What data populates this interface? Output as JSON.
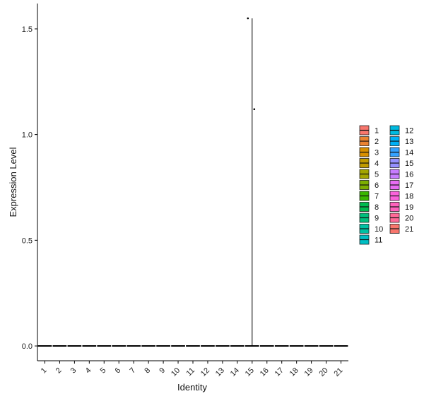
{
  "chart_data": {
    "type": "violin",
    "title": "",
    "xlabel": "Identity",
    "ylabel": "Expression Level",
    "ylim": [
      -0.07,
      1.62
    ],
    "yticks": [
      0.0,
      0.5,
      1.0,
      1.5
    ],
    "ytick_labels": [
      "0.0",
      "0.5",
      "1.0",
      "1.5"
    ],
    "categories": [
      "1",
      "2",
      "3",
      "4",
      "5",
      "6",
      "7",
      "8",
      "9",
      "10",
      "11",
      "12",
      "13",
      "14",
      "15",
      "16",
      "17",
      "18",
      "19",
      "20",
      "21"
    ],
    "median_values": [
      0,
      0,
      0,
      0,
      0,
      0,
      0,
      0,
      0,
      0,
      0,
      0,
      0,
      0,
      0,
      0,
      0,
      0,
      0,
      0,
      0
    ],
    "points": [
      {
        "category": "15",
        "value": 1.55
      },
      {
        "category": "15",
        "value": 1.12
      }
    ],
    "vertical_extents": [
      {
        "category": "15",
        "min": 0.0,
        "max": 1.55
      }
    ],
    "legend": {
      "position": "right",
      "columns": 2,
      "entries": [
        "1",
        "2",
        "3",
        "4",
        "5",
        "6",
        "7",
        "8",
        "9",
        "10",
        "11",
        "12",
        "13",
        "14",
        "15",
        "16",
        "17",
        "18",
        "19",
        "20",
        "21"
      ]
    },
    "colors": [
      "#F8766D",
      "#EA8331",
      "#D89000",
      "#C09B00",
      "#A3A500",
      "#7CAE00",
      "#39B600",
      "#00BB4E",
      "#00BF7D",
      "#00C1A3",
      "#00BFC4",
      "#00BAE0",
      "#00B0F6",
      "#35A2FF",
      "#9590FF",
      "#C77CFF",
      "#E76BF3",
      "#FA62DB",
      "#FF62BC",
      "#FF6A98",
      "#F8766D"
    ],
    "grid": false
  }
}
